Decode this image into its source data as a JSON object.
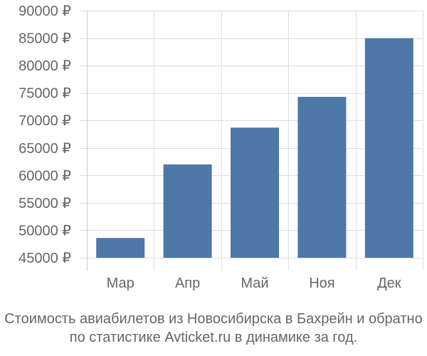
{
  "chart_data": {
    "type": "bar",
    "categories": [
      "Мар",
      "Апр",
      "Май",
      "Ноя",
      "Дек"
    ],
    "values": [
      48600,
      62000,
      68700,
      74300,
      85000
    ],
    "ylim": [
      45000,
      90000
    ],
    "yticks": [
      45000,
      50000,
      55000,
      60000,
      65000,
      70000,
      75000,
      80000,
      85000,
      90000
    ],
    "ytick_suffix": " ₽",
    "grid": true,
    "bar_color": "#4d78a8"
  },
  "caption": {
    "line1": "Стоимость авиабилетов из Новосибирска в Бахрейн и обратно",
    "line2": "по статистике Avticket.ru в динамике за год."
  }
}
